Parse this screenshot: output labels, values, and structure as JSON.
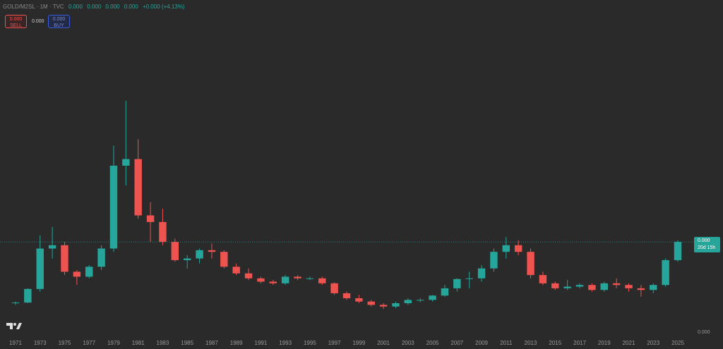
{
  "chart_data": {
    "type": "candlestick",
    "symbol": "GOLD/M2SL",
    "interval": "1M",
    "source": "TVC",
    "legend_values": [
      "0.000",
      "0.000",
      "0.000",
      "0.000"
    ],
    "change": "+0.000 (+4.13%)",
    "sell_price": "0.000",
    "sell_label": "SELL",
    "spread": "0.000",
    "buy_price": "0.000",
    "buy_label": "BUY",
    "last_price_label": "0.000",
    "countdown": "20d 15h",
    "price_axis_label": "0.000",
    "up_color": "#26a69a",
    "down_color": "#ef5350",
    "ylim": [
      0,
      100
    ],
    "categories": [
      "1971",
      null,
      "1973",
      null,
      "1975",
      null,
      "1977",
      null,
      "1979",
      null,
      "1981",
      null,
      "1983",
      null,
      "1985",
      null,
      "1987",
      null,
      "1989",
      null,
      "1991",
      null,
      "1993",
      null,
      "1995",
      null,
      "1997",
      null,
      "1999",
      null,
      "2001",
      null,
      "2003",
      null,
      "2005",
      null,
      "2007",
      null,
      "2009",
      null,
      "2011",
      null,
      "2013",
      null,
      "2015",
      null,
      "2017",
      null,
      "2019",
      null,
      "2021",
      null,
      "2023",
      null,
      "2025"
    ],
    "open": [
      8.5,
      8.7,
      12.8,
      25,
      26,
      18,
      16.5,
      19.5,
      25,
      50,
      52,
      35,
      33,
      27,
      21.5,
      22,
      24.5,
      24,
      19.5,
      17.5,
      16,
      15,
      14.5,
      16.5,
      16,
      16,
      14.5,
      11.5,
      10,
      9,
      8,
      7.5,
      8.5,
      9.5,
      9.5,
      10.8,
      13,
      15.8,
      16,
      19,
      24,
      26,
      24,
      17,
      14.5,
      13,
      13.5,
      14,
      12.5,
      14.5,
      14,
      13,
      12.5,
      14,
      21.5
    ],
    "high": [
      9,
      13,
      29,
      31.5,
      27,
      18.5,
      20,
      26,
      56,
      69.6,
      58,
      39,
      37,
      28,
      23,
      25,
      26.5,
      24.5,
      20.5,
      19,
      16.5,
      15.5,
      17,
      17,
      16.5,
      16.5,
      14.8,
      12,
      11,
      9.5,
      8.5,
      9,
      10,
      10,
      11,
      14,
      16,
      18,
      20,
      25,
      28.5,
      27.5,
      25,
      18,
      15,
      15.5,
      14.5,
      14.5,
      15,
      16,
      14.5,
      14,
      14.5,
      22,
      27.5
    ],
    "low": [
      8,
      8.5,
      12,
      22,
      17,
      14,
      16,
      18.5,
      24,
      44,
      34,
      27,
      26,
      21,
      19,
      20.5,
      22,
      19,
      17,
      15.5,
      14.5,
      14,
      14,
      15.5,
      15.5,
      14,
      11,
      9.5,
      8.5,
      7.5,
      6.8,
      7,
      8,
      8.8,
      9,
      10.5,
      12,
      13,
      15,
      18,
      22,
      23,
      16,
      14,
      12.5,
      12.5,
      13,
      12,
      12,
      13,
      12,
      10.5,
      11.5,
      13.5,
      21
    ],
    "close": [
      8.7,
      12.8,
      25,
      26,
      18,
      16.5,
      19.5,
      25,
      50,
      52,
      35,
      33,
      27,
      21.5,
      22,
      24.5,
      24,
      19.5,
      17.5,
      16,
      15,
      14.5,
      16.5,
      16,
      16,
      14.5,
      11.5,
      10,
      9,
      8,
      7.5,
      8.5,
      9.5,
      9.5,
      10.8,
      13,
      15.8,
      16,
      19,
      24,
      26,
      24,
      17,
      14.5,
      13,
      13.5,
      14,
      12.5,
      14.5,
      14,
      13,
      12.5,
      14,
      21.5,
      27
    ]
  }
}
